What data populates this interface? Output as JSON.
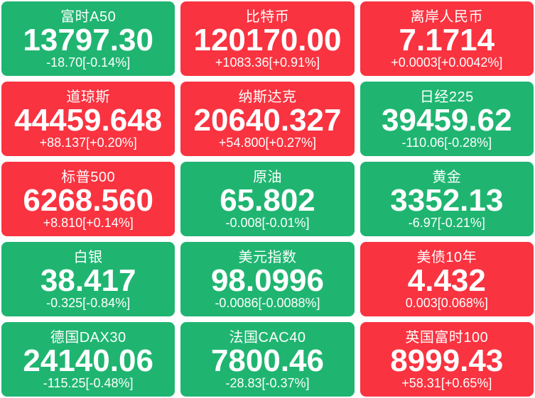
{
  "colors": {
    "up": "#F93340",
    "down": "#1FB571",
    "text": "#FFFFFF",
    "page_background": "#FFFFFF"
  },
  "tiles": [
    {
      "name": "富时A50",
      "value": "13797.30",
      "change": "-18.70[-0.14%]",
      "direction": "down"
    },
    {
      "name": "比特币",
      "value": "120170.00",
      "change": "+1083.36[+0.91%]",
      "direction": "up"
    },
    {
      "name": "离岸人民币",
      "value": "7.1714",
      "change": "+0.0003[+0.0042%]",
      "direction": "up"
    },
    {
      "name": "道琼斯",
      "value": "44459.648",
      "change": "+88.137[+0.20%]",
      "direction": "up"
    },
    {
      "name": "纳斯达克",
      "value": "20640.327",
      "change": "+54.800[+0.27%]",
      "direction": "up"
    },
    {
      "name": "日经225",
      "value": "39459.62",
      "change": "-110.06[-0.28%]",
      "direction": "down"
    },
    {
      "name": "标普500",
      "value": "6268.560",
      "change": "+8.810[+0.14%]",
      "direction": "up"
    },
    {
      "name": "原油",
      "value": "65.802",
      "change": "-0.008[-0.01%]",
      "direction": "down"
    },
    {
      "name": "黄金",
      "value": "3352.13",
      "change": "-6.97[-0.21%]",
      "direction": "down"
    },
    {
      "name": "白银",
      "value": "38.417",
      "change": "-0.325[-0.84%]",
      "direction": "down"
    },
    {
      "name": "美元指数",
      "value": "98.0996",
      "change": "-0.0086[-0.0088%]",
      "direction": "down"
    },
    {
      "name": "美债10年",
      "value": "4.432",
      "change": "0.003[0.068%]",
      "direction": "up"
    },
    {
      "name": "德国DAX30",
      "value": "24140.06",
      "change": "-115.25[-0.48%]",
      "direction": "down"
    },
    {
      "name": "法国CAC40",
      "value": "7800.46",
      "change": "-28.83[-0.37%]",
      "direction": "down"
    },
    {
      "name": "英国富时100",
      "value": "8999.43",
      "change": "+58.31[+0.65%]",
      "direction": "up"
    }
  ]
}
